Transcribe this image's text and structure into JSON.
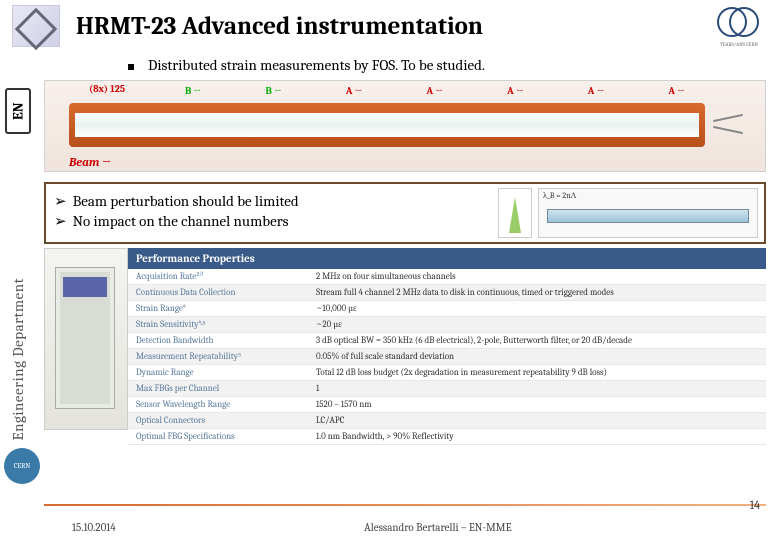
{
  "header": {
    "title": "HRMT-23 Advanced instrumentation",
    "logo_right_caption": "YEARS/ANS CERN"
  },
  "bullet": {
    "text": "Distributed strain measurements by FOS. To be studied."
  },
  "sidebar": {
    "en_label": "EN",
    "dept_label": "Engineering Department"
  },
  "beam_figure": {
    "top_label": "(8x) 125",
    "arrow_labels": [
      "B →",
      "B →",
      "A ←",
      "A ←",
      "A ←",
      "A ←",
      "A ←"
    ],
    "arrow_colors": [
      "#0a0",
      "#0a0",
      "#c00",
      "#c00",
      "#c00",
      "#c00",
      "#c00"
    ],
    "beam_label": "Beam →",
    "bar_color_top": "#d86a2e",
    "bar_color_bottom": "#b8501a",
    "background": "#f0e4dc"
  },
  "notes": {
    "lines": [
      "Beam perturbation should be limited",
      "No impact on the channel numbers"
    ],
    "formula": "λ_B = 2nΛ",
    "border_color": "#6a4a2a"
  },
  "spec_table": {
    "header": "Performance Properties",
    "header_bg": "#3a5a8a",
    "rows": [
      {
        "key": "Acquisition Rate²³",
        "val": "2 MHz on four simultaneous channels"
      },
      {
        "key": "Continuous Data Collection",
        "val": "Stream full 4 channel 2 MHz data to disk in continuous, timed or triggered modes"
      },
      {
        "key": "Strain Range⁴",
        "val": "~10,000 µε"
      },
      {
        "key": "Strain Sensitivity⁴·⁵",
        "val": "~20 µε"
      },
      {
        "key": "Detection Bandwidth",
        "val": "3 dB optical BW = 350 kHz (6 dB electrical), 2-pole, Butterworth filter, or 20 dB/decade"
      },
      {
        "key": "Measurement Repeatability⁵",
        "val": "0.05% of full scale standard deviation"
      },
      {
        "key": "Dynamic Range",
        "val": "Total 12 dB loss budget (2x degradation in measurement repeatability 9 dB loss)"
      },
      {
        "key": "Max FBGs per Channel",
        "val": "1"
      },
      {
        "key": "Sensor Wavelength Range",
        "val": "1520 – 1570 nm"
      },
      {
        "key": "Optical Connectors",
        "val": "LC/APC"
      },
      {
        "key": "Optimal FBG Specifications",
        "val": "1.0 nm Bandwidth, > 90% Reflectivity"
      }
    ]
  },
  "footer": {
    "date": "15.10.2014",
    "author": "Alessandro Bertarelli – EN-MME",
    "page": "14",
    "line_color": "#d86a2e"
  }
}
